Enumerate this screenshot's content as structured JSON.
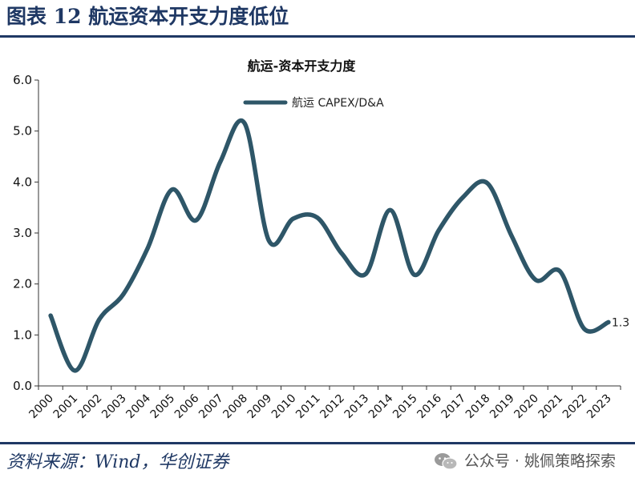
{
  "header": {
    "title": "图表 12  航运资本开支力度低位"
  },
  "footer": {
    "source": "资料来源：Wind，华创证券",
    "watermark": "公众号 · 姚佩策略探索"
  },
  "icons": {
    "watermark_icon": "wechat-icon"
  },
  "colors": {
    "accent": "#1f3864",
    "series": "#2e5668"
  },
  "chart_data": {
    "type": "line",
    "title": "航运-资本开支力度",
    "xlabel": "",
    "ylabel": "",
    "x": [
      "2000",
      "2001",
      "2002",
      "2003",
      "2004",
      "2005",
      "2006",
      "2007",
      "2008",
      "2009",
      "2010",
      "2011",
      "2012",
      "2013",
      "2014",
      "2015",
      "2016",
      "2017",
      "2018",
      "2019",
      "2020",
      "2021",
      "2022",
      "2023"
    ],
    "series": [
      {
        "name": "航运 CAPEX/D&A",
        "values": [
          1.38,
          0.3,
          1.3,
          1.8,
          2.7,
          3.85,
          3.25,
          4.4,
          5.15,
          2.85,
          3.28,
          3.3,
          2.6,
          2.2,
          3.45,
          2.18,
          3.05,
          3.7,
          3.98,
          2.95,
          2.08,
          2.25,
          1.12,
          1.25
        ]
      }
    ],
    "ylim": [
      0,
      6
    ],
    "yticks": [
      "0.0",
      "1.0",
      "2.0",
      "3.0",
      "4.0",
      "5.0",
      "6.0"
    ],
    "grid": false,
    "legend": "top",
    "end_label": "1.3"
  }
}
